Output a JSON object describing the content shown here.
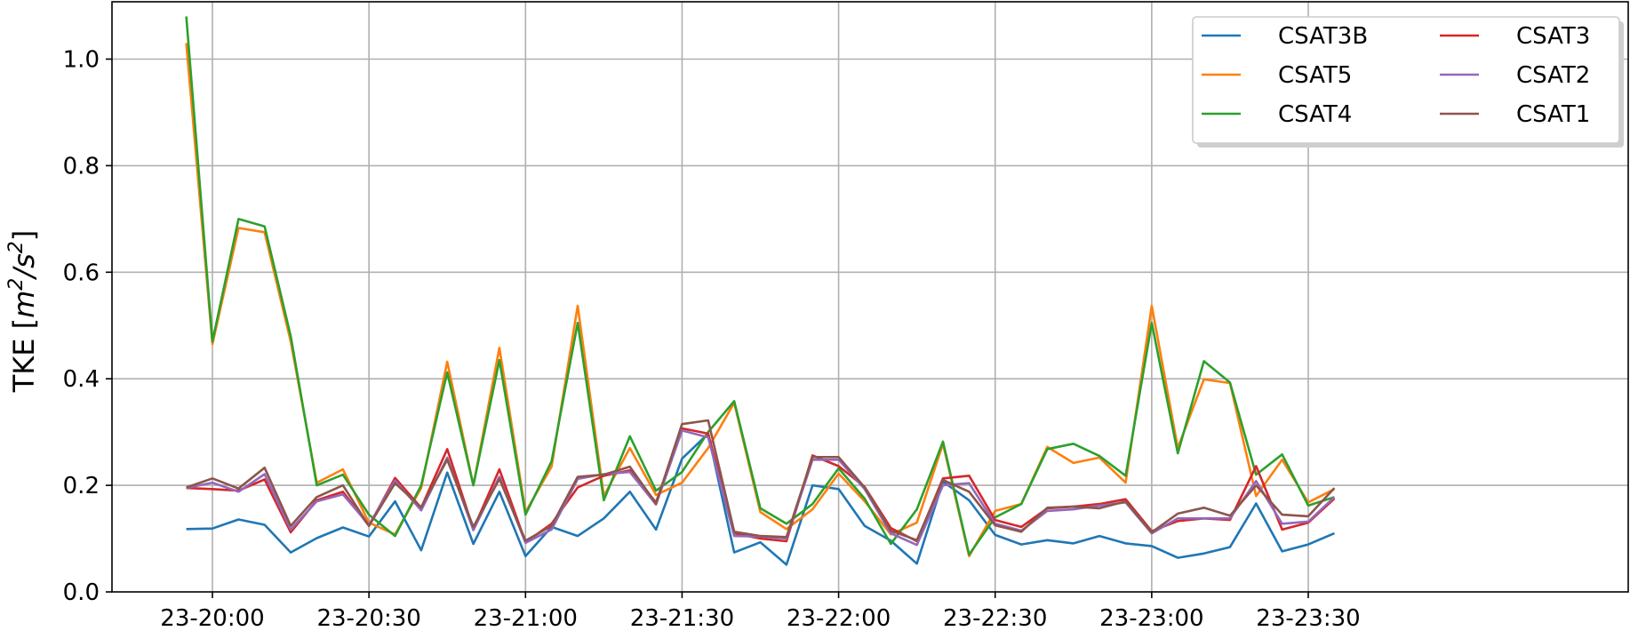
{
  "chart_data": {
    "type": "line",
    "title": "",
    "xlabel": "",
    "ylabel": "TKE [m²/s²]",
    "ylabel_parts": {
      "prefix": "TKE [",
      "m": "m",
      "exp1": "2",
      "slash": "/",
      "s": "s",
      "exp2": "2",
      "suffix": "]"
    },
    "ylim": [
      0.0,
      1.13
    ],
    "yticks": [
      "0.0",
      "0.2",
      "0.4",
      "0.6",
      "0.8",
      "1.0"
    ],
    "xticks": [
      "23-20:00",
      "23-20:30",
      "23-21:00",
      "23-21:30",
      "23-22:00",
      "23-22:30",
      "23-23:00",
      "23-23:30"
    ],
    "grid": true,
    "legend_position": "top-right",
    "legend_columns": 2,
    "x": [
      "19:55",
      "20:00",
      "20:05",
      "20:10",
      "20:15",
      "20:20",
      "20:25",
      "20:30",
      "20:35",
      "20:40",
      "20:45",
      "20:50",
      "20:55",
      "21:00",
      "21:05",
      "21:10",
      "21:15",
      "21:20",
      "21:25",
      "21:30",
      "21:35",
      "21:40",
      "21:45",
      "21:50",
      "21:55",
      "22:00",
      "22:05",
      "22:10",
      "22:15",
      "22:20",
      "22:25",
      "22:30",
      "22:35",
      "22:40",
      "22:45",
      "22:50",
      "22:55",
      "23:00",
      "23:05",
      "23:10",
      "23:15",
      "23:20",
      "23:25",
      "23:30",
      "23:35"
    ],
    "series": [
      {
        "name": "CSAT3B",
        "color": "#1f77b4",
        "values": [
          0.118,
          0.119,
          0.136,
          0.126,
          0.074,
          0.101,
          0.121,
          0.104,
          0.17,
          0.078,
          0.224,
          0.09,
          0.188,
          0.067,
          0.122,
          0.105,
          0.138,
          0.188,
          0.117,
          0.25,
          0.297,
          0.074,
          0.093,
          0.051,
          0.2,
          0.193,
          0.124,
          0.096,
          0.053,
          0.207,
          0.172,
          0.107,
          0.089,
          0.097,
          0.091,
          0.105,
          0.091,
          0.086,
          0.064,
          0.072,
          0.084,
          0.166,
          0.076,
          0.089,
          0.11
        ]
      },
      {
        "name": "CSAT5",
        "color": "#ff7f0e",
        "values": [
          1.03,
          0.465,
          0.683,
          0.675,
          0.47,
          0.205,
          0.23,
          0.13,
          0.108,
          0.195,
          0.432,
          0.2,
          0.458,
          0.15,
          0.235,
          0.537,
          0.18,
          0.27,
          0.182,
          0.205,
          0.27,
          0.355,
          0.15,
          0.118,
          0.155,
          0.222,
          0.17,
          0.108,
          0.13,
          0.278,
          0.067,
          0.152,
          0.165,
          0.272,
          0.242,
          0.252,
          0.205,
          0.537,
          0.27,
          0.399,
          0.392,
          0.18,
          0.248,
          0.168,
          0.193
        ]
      },
      {
        "name": "CSAT4",
        "color": "#2ca02c",
        "values": [
          1.08,
          0.47,
          0.7,
          0.686,
          0.48,
          0.2,
          0.22,
          0.145,
          0.105,
          0.2,
          0.412,
          0.2,
          0.435,
          0.145,
          0.245,
          0.505,
          0.172,
          0.292,
          0.19,
          0.225,
          0.3,
          0.358,
          0.157,
          0.128,
          0.165,
          0.232,
          0.175,
          0.09,
          0.155,
          0.282,
          0.07,
          0.14,
          0.165,
          0.268,
          0.278,
          0.255,
          0.218,
          0.505,
          0.26,
          0.433,
          0.393,
          0.22,
          0.258,
          0.162,
          0.178
        ]
      },
      {
        "name": "CSAT3",
        "color": "#d62728",
        "values": [
          0.195,
          0.193,
          0.19,
          0.211,
          0.112,
          0.172,
          0.188,
          0.124,
          0.214,
          0.158,
          0.268,
          0.118,
          0.23,
          0.093,
          0.128,
          0.196,
          0.218,
          0.228,
          0.168,
          0.307,
          0.297,
          0.11,
          0.1,
          0.095,
          0.256,
          0.236,
          0.197,
          0.12,
          0.095,
          0.213,
          0.218,
          0.135,
          0.122,
          0.157,
          0.16,
          0.165,
          0.174,
          0.114,
          0.133,
          0.138,
          0.135,
          0.236,
          0.117,
          0.13,
          0.175
        ]
      },
      {
        "name": "CSAT2",
        "color": "#9467bd",
        "values": [
          0.195,
          0.205,
          0.188,
          0.221,
          0.117,
          0.17,
          0.183,
          0.126,
          0.209,
          0.153,
          0.252,
          0.116,
          0.216,
          0.092,
          0.117,
          0.212,
          0.221,
          0.225,
          0.164,
          0.303,
          0.29,
          0.105,
          0.104,
          0.1,
          0.248,
          0.248,
          0.193,
          0.11,
          0.088,
          0.2,
          0.204,
          0.128,
          0.115,
          0.152,
          0.155,
          0.162,
          0.168,
          0.11,
          0.138,
          0.138,
          0.138,
          0.208,
          0.128,
          0.132,
          0.178
        ]
      },
      {
        "name": "CSAT1",
        "color": "#8c564b",
        "values": [
          0.196,
          0.213,
          0.194,
          0.233,
          0.124,
          0.178,
          0.2,
          0.124,
          0.204,
          0.159,
          0.248,
          0.122,
          0.212,
          0.096,
          0.124,
          0.216,
          0.22,
          0.235,
          0.166,
          0.315,
          0.322,
          0.113,
          0.105,
          0.103,
          0.253,
          0.253,
          0.196,
          0.115,
          0.097,
          0.21,
          0.188,
          0.125,
          0.113,
          0.158,
          0.16,
          0.157,
          0.17,
          0.112,
          0.147,
          0.158,
          0.143,
          0.2,
          0.145,
          0.142,
          0.195
        ]
      }
    ]
  }
}
